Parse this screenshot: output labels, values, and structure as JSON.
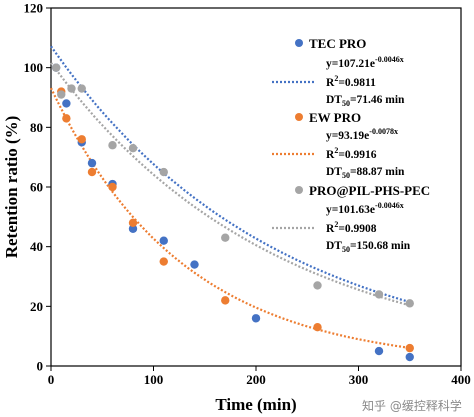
{
  "chart_data": {
    "type": "scatter",
    "xlabel": "Time (min)",
    "ylabel": "Retention ratio (%)",
    "xlim": [
      0,
      400
    ],
    "ylim": [
      0,
      120
    ],
    "x_ticks": [
      0,
      100,
      200,
      300,
      400
    ],
    "y_ticks": [
      0,
      20,
      40,
      60,
      80,
      100,
      120
    ],
    "grid": false,
    "legend_position": "right",
    "series": [
      {
        "name": "TEC PRO",
        "color": "#4472c4",
        "marker": "circle",
        "fit_line": "dotted",
        "equation_main": "y=107.21e",
        "equation_exp": "-0.0046x",
        "r2_prefix": "R",
        "r2_sup": "2",
        "r2_value": "=0.9811",
        "dt_prefix": "DT",
        "dt_sub": "50",
        "dt_value": "=71.46 min",
        "fit": {
          "a": 107.21,
          "k": 0.0046
        },
        "x": [
          5,
          15,
          30,
          40,
          60,
          80,
          110,
          140,
          200,
          320,
          350
        ],
        "y": [
          100,
          88,
          75,
          68,
          61,
          46,
          42,
          34,
          16,
          5,
          3
        ]
      },
      {
        "name": "EW PRO",
        "color": "#ed7d31",
        "marker": "circle",
        "fit_line": "dotted",
        "equation_main": "y=93.19e",
        "equation_exp": "-0.0078x",
        "r2_prefix": "R",
        "r2_sup": "2",
        "r2_value": "=0.9916",
        "dt_prefix": "DT",
        "dt_sub": "50",
        "dt_value": "=88.87 min",
        "fit": {
          "a": 93.19,
          "k": 0.0078
        },
        "x": [
          10,
          15,
          30,
          40,
          60,
          80,
          110,
          170,
          260,
          350
        ],
        "y": [
          92,
          83,
          76,
          65,
          60,
          48,
          35,
          22,
          13,
          6
        ]
      },
      {
        "name": "PRO@PIL-PHS-PEC",
        "color": "#a5a5a5",
        "marker": "circle",
        "fit_line": "dotted",
        "equation_main": "y=101.63e",
        "equation_exp": "-0.0046x",
        "r2_prefix": "R",
        "r2_sup": "2",
        "r2_value": "=0.9908",
        "dt_prefix": "DT",
        "dt_sub": "50",
        "dt_value": "=150.68 min",
        "fit": {
          "a": 101.63,
          "k": 0.0046
        },
        "x": [
          5,
          10,
          20,
          30,
          60,
          80,
          110,
          170,
          260,
          320,
          350
        ],
        "y": [
          100,
          91,
          93,
          93,
          74,
          73,
          65,
          43,
          27,
          24,
          21
        ]
      }
    ]
  },
  "watermark": "知乎 @缓控释科学"
}
